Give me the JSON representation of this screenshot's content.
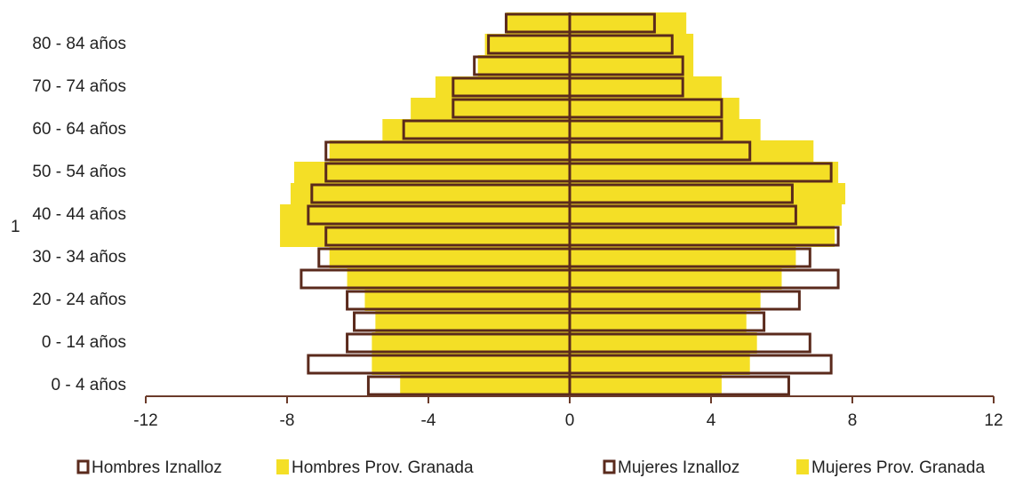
{
  "chart_data": {
    "type": "pyramid",
    "categories": [
      "0 - 4 años",
      null,
      "0 - 14 años",
      null,
      "20 - 24 años",
      null,
      "30 - 34 años",
      null,
      "40 - 44 años",
      null,
      "50 - 54 años",
      null,
      "60 - 64 años",
      null,
      "70 - 74 años",
      null,
      "80 - 84 años",
      null
    ],
    "series": [
      {
        "name": "Hombres Prov. Granada",
        "color": "#f4df26",
        "outline": false,
        "values": [
          -4.8,
          -5.6,
          -5.6,
          -5.5,
          -5.8,
          -6.3,
          -6.8,
          -8.2,
          -8.2,
          -7.9,
          -7.8,
          -6.8,
          -5.3,
          -4.5,
          -3.8,
          -2.6,
          -2.4,
          -1.8
        ]
      },
      {
        "name": "Mujeres Prov. Granada",
        "color": "#f4df26",
        "outline": false,
        "values": [
          4.3,
          5.1,
          5.3,
          5.0,
          5.4,
          6.0,
          6.4,
          7.5,
          7.7,
          7.8,
          7.6,
          6.9,
          5.4,
          4.8,
          4.3,
          3.5,
          3.5,
          3.3
        ]
      },
      {
        "name": "Hombres Iznalloz",
        "color": "#5a2a1c",
        "outline": true,
        "values": [
          -5.7,
          -7.4,
          -6.3,
          -6.1,
          -6.3,
          -7.6,
          -7.1,
          -6.9,
          -7.4,
          -7.3,
          -6.9,
          -6.9,
          -4.7,
          -3.3,
          -3.3,
          -2.7,
          -2.3,
          -1.8
        ]
      },
      {
        "name": "Mujeres Iznalloz",
        "color": "#5a2a1c",
        "outline": true,
        "values": [
          6.2,
          7.4,
          6.8,
          5.5,
          6.5,
          7.6,
          6.8,
          7.6,
          6.4,
          6.3,
          7.4,
          5.1,
          4.3,
          4.3,
          3.2,
          3.2,
          2.9,
          2.4
        ]
      }
    ],
    "legend_order": [
      2,
      0,
      3,
      1
    ],
    "annotations": [
      "1"
    ],
    "xlim": [
      -12,
      12
    ],
    "xticks": [
      -12,
      -8,
      -4,
      0,
      4,
      8,
      12
    ]
  }
}
